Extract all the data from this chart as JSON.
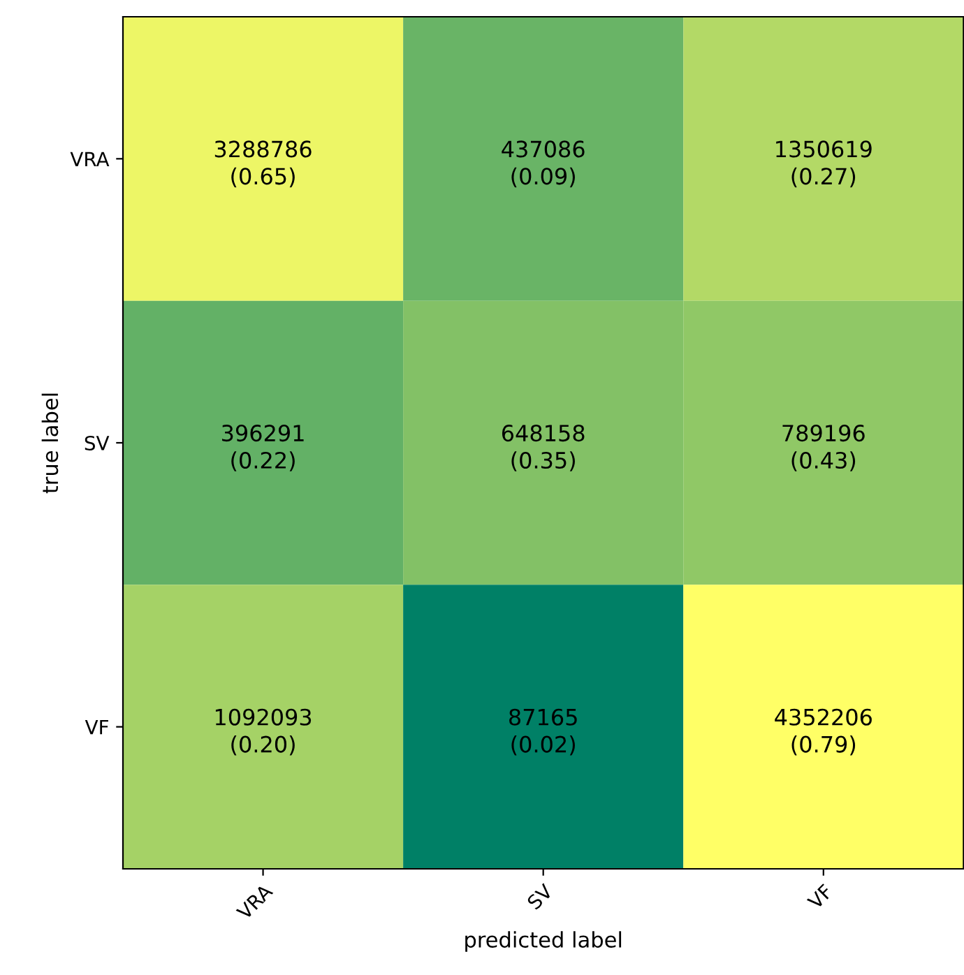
{
  "chart_data": {
    "type": "heatmap",
    "xlabel": "predicted label",
    "ylabel": "true label",
    "categories": [
      "VRA",
      "SV",
      "VF"
    ],
    "y_categories": [
      "VRA",
      "SV",
      "VF"
    ],
    "cells": [
      [
        3288786,
        437086,
        1350619
      ],
      [
        396291,
        648158,
        789196
      ],
      [
        1092093,
        87165,
        4352206
      ]
    ],
    "data_labels": true,
    "annotations": [
      "(0.65)",
      "(0.09)",
      "(0.27)",
      "(0.22)",
      "(0.35)",
      "(0.43)",
      "(0.20)",
      "(0.02)",
      "(0.79)"
    ]
  }
}
